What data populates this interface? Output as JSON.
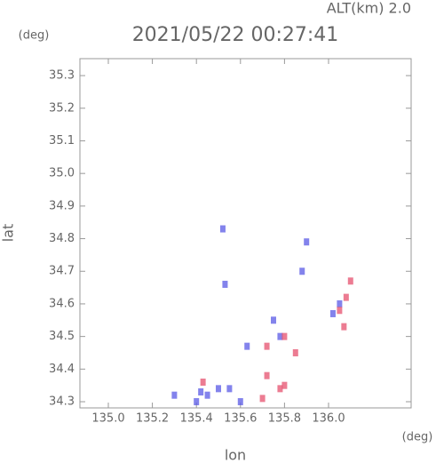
{
  "chart_data": {
    "type": "scatter",
    "title": "2021/05/22 00:27:41",
    "subtitle": "ALT(km) 2.0",
    "y_unit": "(deg)",
    "x_unit": "(deg)",
    "x_label": "lon",
    "y_label": "lat",
    "xlim": [
      134.871,
      136.375
    ],
    "ylim": [
      34.281,
      35.352
    ],
    "xticks": [
      {
        "value": 135,
        "label": "135.0"
      },
      135.2,
      135.4,
      135.6,
      135.8,
      {
        "value": 136,
        "label": "136.0"
      }
    ],
    "yticks": [
      34.3,
      34.4,
      34.5,
      34.6,
      34.7,
      34.8,
      34.9,
      {
        "value": 35,
        "label": "35.0"
      },
      35.1,
      35.2,
      35.3
    ],
    "series": [
      {
        "color": "#5a5ae6",
        "x": [
          135.3,
          135.4,
          135.42,
          135.45,
          135.5,
          135.55,
          135.6,
          135.52,
          135.53,
          135.63,
          135.75,
          135.78,
          135.9,
          135.88,
          136.02,
          136.05
        ],
        "y": [
          34.32,
          34.3,
          34.33,
          34.32,
          34.34,
          34.34,
          34.3,
          34.83,
          34.66,
          34.47,
          34.55,
          34.5,
          34.79,
          34.7,
          34.57,
          34.6
        ]
      },
      {
        "color": "#e6506e",
        "x": [
          135.43,
          135.7,
          135.72,
          135.8,
          135.78,
          135.85,
          135.72,
          135.8,
          136.05,
          136.08,
          136.1,
          136.07
        ],
        "y": [
          34.36,
          34.31,
          34.38,
          34.35,
          34.34,
          34.45,
          34.47,
          34.5,
          34.58,
          34.62,
          34.67,
          34.53
        ]
      }
    ]
  }
}
